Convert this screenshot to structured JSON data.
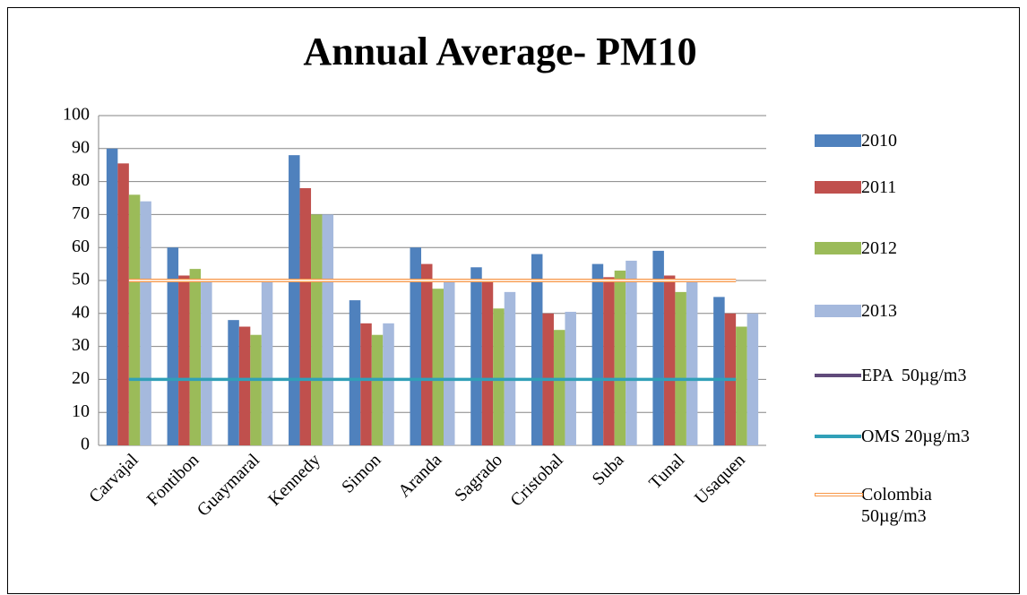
{
  "chart_data": {
    "type": "bar",
    "title": "Annual Average- PM10",
    "categories": [
      "Carvajal",
      "Fontibon",
      "Guaymaral",
      "Kennedy",
      "Simon",
      "Aranda",
      "Sagrado",
      "Cristobal",
      "Suba",
      "Tunal",
      "Usaquen"
    ],
    "series": [
      {
        "name": "2010",
        "type": "bar",
        "color": "#4f81bd",
        "values": [
          90,
          60,
          38,
          88,
          44,
          60,
          54,
          58,
          55,
          59,
          45
        ]
      },
      {
        "name": "2011",
        "type": "bar",
        "color": "#c0504d",
        "values": [
          85.5,
          51.5,
          36,
          78,
          37,
          55,
          50,
          40,
          51,
          51.5,
          40
        ]
      },
      {
        "name": "2012",
        "type": "bar",
        "color": "#9bbb59",
        "values": [
          76,
          53.5,
          33.5,
          70,
          33.5,
          47.5,
          41.5,
          35,
          53,
          46.5,
          36
        ]
      },
      {
        "name": "2013",
        "type": "bar",
        "color": "#a5b9dd",
        "values": [
          74,
          49.5,
          49.5,
          70,
          37,
          49.5,
          46.5,
          40.5,
          56,
          49.5,
          40
        ]
      },
      {
        "name": "EPA  50µg/m3",
        "type": "line",
        "color": "#604a7b",
        "values": [
          50,
          50,
          50,
          50,
          50,
          50,
          50,
          50,
          50,
          50,
          50
        ]
      },
      {
        "name": "OMS 20µg/m3",
        "type": "line",
        "color": "#31a0b8",
        "values": [
          20,
          20,
          20,
          20,
          20,
          20,
          20,
          20,
          20,
          20,
          20
        ]
      },
      {
        "name": "Colombia 50µg/m3",
        "type": "double-line",
        "color": "#f79646",
        "values": [
          50,
          50,
          50,
          50,
          50,
          50,
          50,
          50,
          50,
          50,
          50
        ]
      }
    ],
    "ylim": [
      0,
      100
    ],
    "yticks": [
      0,
      10,
      20,
      30,
      40,
      50,
      60,
      70,
      80,
      90,
      100
    ],
    "grid": true,
    "legend": "right"
  }
}
